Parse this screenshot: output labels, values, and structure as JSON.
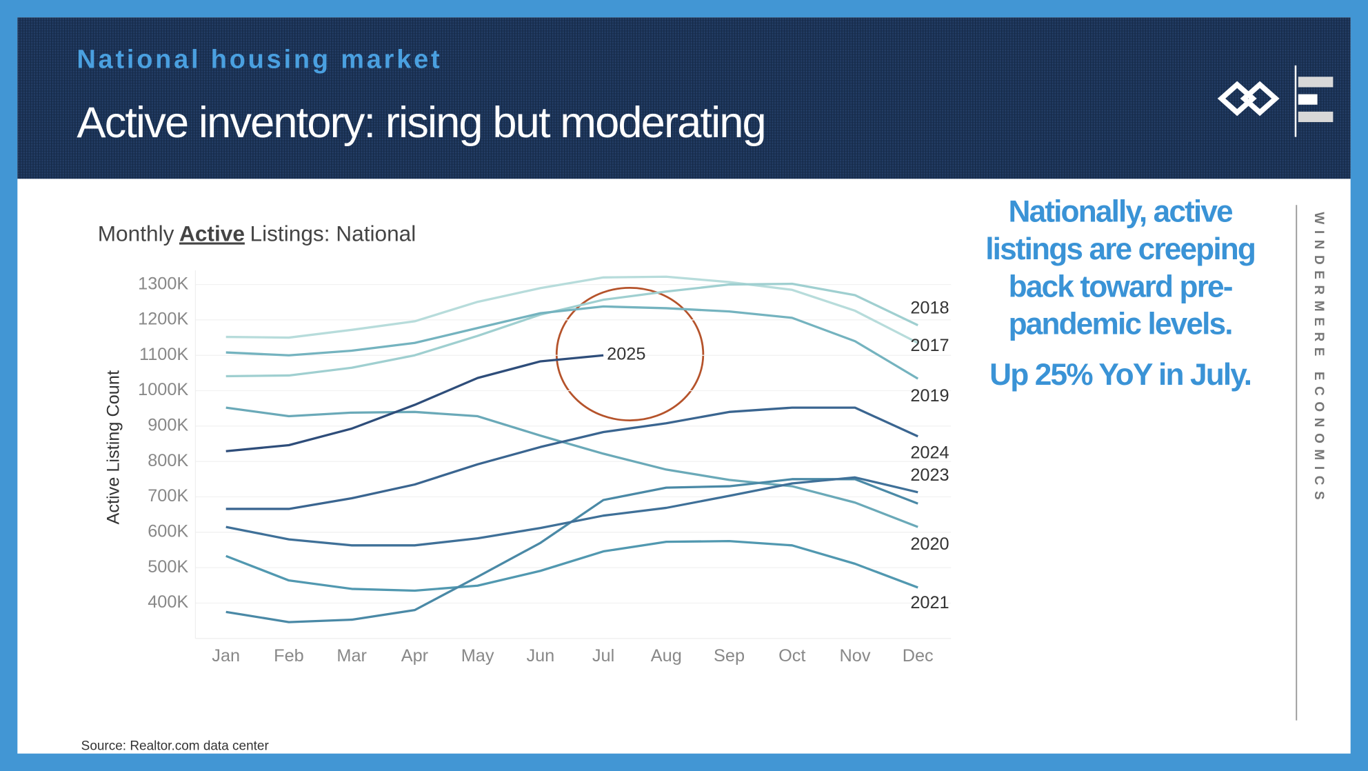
{
  "header": {
    "kicker": "National housing market",
    "title": "Active inventory: rising but moderating"
  },
  "chart_data": {
    "type": "line",
    "title_parts": [
      "Monthly",
      "Active",
      "Listings: National"
    ],
    "y_label": "Active Listing Count",
    "categories": [
      "Jan",
      "Feb",
      "Mar",
      "Apr",
      "May",
      "Jun",
      "Jul",
      "Aug",
      "Sep",
      "Oct",
      "Nov",
      "Dec"
    ],
    "ylim": [
      300000,
      1340000
    ],
    "yticks": [
      {
        "value": 400000,
        "label": "400K"
      },
      {
        "value": 500000,
        "label": "500K"
      },
      {
        "value": 600000,
        "label": "600K"
      },
      {
        "value": 700000,
        "label": "700K"
      },
      {
        "value": 800000,
        "label": "800K"
      },
      {
        "value": 900000,
        "label": "900K"
      },
      {
        "value": 1000000,
        "label": "1000K"
      },
      {
        "value": 1100000,
        "label": "1100K"
      },
      {
        "value": 1200000,
        "label": "1200K"
      },
      {
        "value": 1300000,
        "label": "1300K"
      }
    ],
    "grid": true,
    "series": [
      {
        "name": "2017",
        "color": "#b7dcdb",
        "values": [
          1152000,
          1150000,
          1172000,
          1196000,
          1251000,
          1290000,
          1320000,
          1322000,
          1307000,
          1285000,
          1226000,
          1135000
        ]
      },
      {
        "name": "2018",
        "color": "#9fcfd0",
        "values": [
          1041000,
          1043000,
          1065000,
          1100000,
          1155000,
          1215000,
          1257000,
          1280000,
          1300000,
          1302000,
          1270000,
          1185000
        ]
      },
      {
        "name": "2019",
        "color": "#74b3bf",
        "values": [
          1108000,
          1100000,
          1113000,
          1135000,
          1177000,
          1219000,
          1238000,
          1233000,
          1224000,
          1206000,
          1140000,
          1034000
        ]
      },
      {
        "name": "2020",
        "color": "#6aa9b8",
        "values": [
          952000,
          928000,
          938000,
          940000,
          928000,
          873000,
          822000,
          777000,
          748000,
          730000,
          684000,
          615000
        ]
      },
      {
        "name": "2021",
        "color": "#5198b0",
        "values": [
          533000,
          464000,
          440000,
          435000,
          449000,
          491000,
          546000,
          573000,
          575000,
          563000,
          511000,
          444000
        ]
      },
      {
        "name": null,
        "color": "#4a89a6",
        "values": [
          375000,
          346000,
          353000,
          380000,
          474000,
          570000,
          691000,
          726000,
          730000,
          750000,
          750000,
          681000
        ]
      },
      {
        "name": "2023",
        "color": "#3f7098",
        "values": [
          615000,
          580000,
          563000,
          563000,
          583000,
          612000,
          647000,
          669000,
          703000,
          738000,
          755000,
          713000
        ]
      },
      {
        "name": "2024",
        "color": "#3a6590",
        "values": [
          666000,
          666000,
          696000,
          735000,
          792000,
          841000,
          883000,
          908000,
          940000,
          952000,
          952000,
          871000
        ]
      },
      {
        "name": "2025",
        "color": "#2e4d7a",
        "values": [
          829000,
          846000,
          893000,
          960000,
          1036000,
          1083000,
          1100000,
          null,
          null,
          null,
          null,
          null
        ]
      }
    ]
  },
  "callout": {
    "lines": [
      "Nationally, active",
      "listings are creeping",
      "back toward pre-",
      "pandemic levels."
    ],
    "highlight": "Up 25% YoY in July."
  },
  "side_label": "WINDERMERE ECONOMICS",
  "source": "Source: Realtor.com data center"
}
